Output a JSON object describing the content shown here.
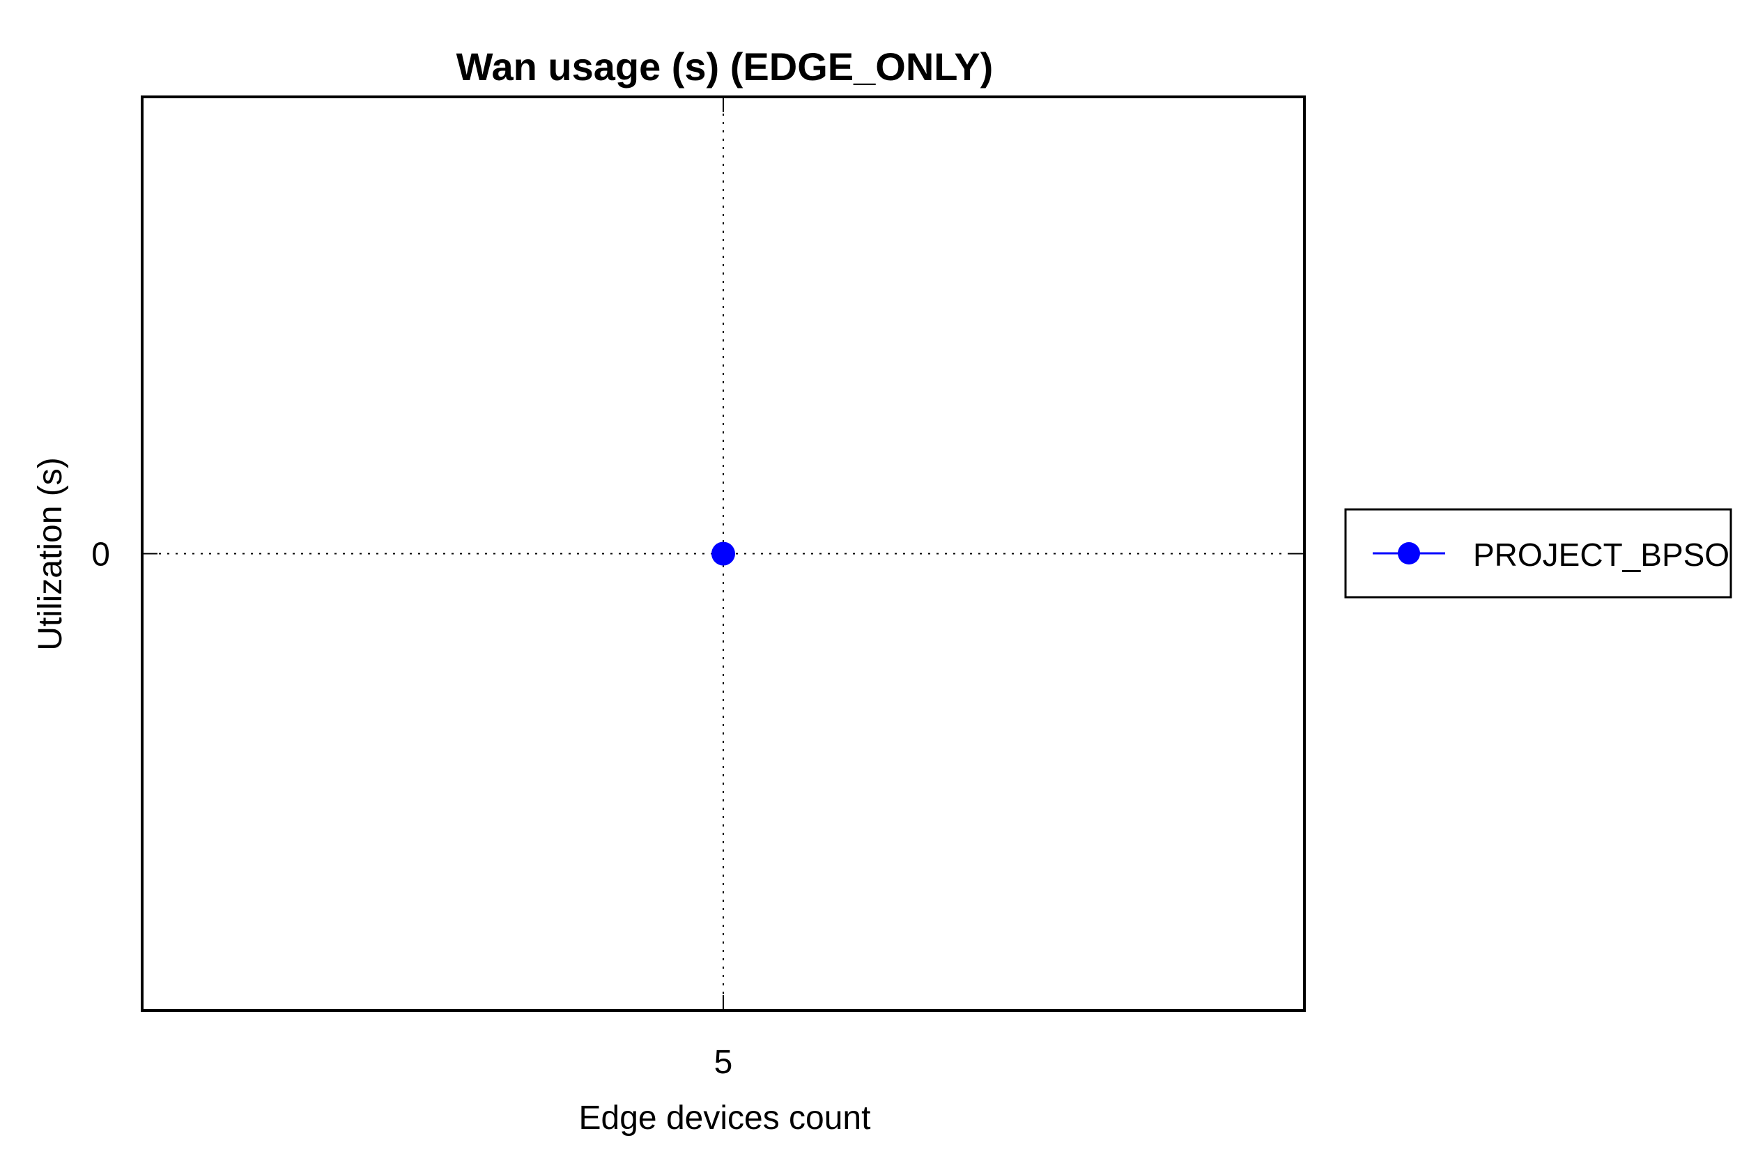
{
  "chart_data": {
    "type": "line",
    "title": "Wan usage (s) (EDGE_ONLY)",
    "xlabel": "Edge devices count",
    "ylabel": "Utilization (s)",
    "x_ticks": [
      "5"
    ],
    "y_ticks": [
      "0"
    ],
    "grid": true,
    "legend_placement": "outside-right",
    "series": [
      {
        "name": "PROJECT_BPSO",
        "color": "#0000ff",
        "marker": "circle",
        "points": [
          {
            "x": 5,
            "y": 0
          }
        ]
      }
    ]
  }
}
